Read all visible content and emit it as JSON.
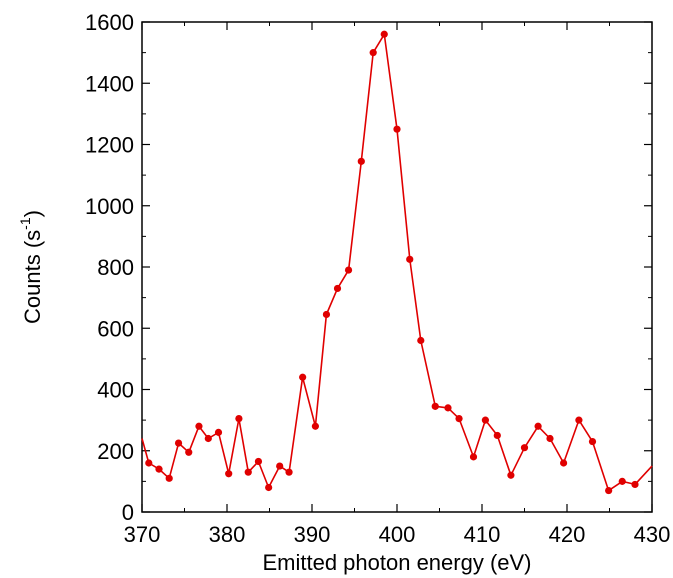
{
  "chart_data": {
    "type": "line",
    "title": "",
    "xlabel": "Emitted photon energy (eV)",
    "ylabel_main": "Counts (s",
    "ylabel_sup": "-1",
    "ylabel_close": ")",
    "xlim": [
      370,
      430
    ],
    "ylim": [
      0,
      1600
    ],
    "xticks": [
      370,
      380,
      390,
      400,
      410,
      420,
      430
    ],
    "yticks": [
      0,
      200,
      400,
      600,
      800,
      1000,
      1200,
      1400,
      1600
    ],
    "grid": false,
    "series": [
      {
        "color": "#e00000",
        "marker": "circle",
        "x": [
          370.0,
          370.8,
          372.0,
          373.2,
          374.3,
          375.5,
          376.7,
          377.8,
          379.0,
          380.2,
          381.4,
          382.5,
          383.7,
          384.9,
          386.2,
          387.3,
          388.9,
          390.4,
          391.7,
          393.0,
          394.3,
          395.8,
          397.2,
          398.5,
          400.0,
          401.5,
          402.8,
          404.5,
          406.0,
          407.3,
          409.0,
          410.4,
          411.8,
          413.4,
          415.0,
          416.6,
          418.0,
          419.6,
          421.4,
          423.0,
          424.9,
          426.5,
          428.0,
          430.0
        ],
        "y": [
          240,
          160,
          140,
          110,
          225,
          195,
          280,
          240,
          260,
          125,
          305,
          130,
          165,
          80,
          150,
          130,
          440,
          280,
          645,
          730,
          790,
          1145,
          1500,
          1560,
          1250,
          825,
          560,
          345,
          340,
          305,
          180,
          300,
          250,
          120,
          210,
          280,
          240,
          160,
          300,
          230,
          70,
          100,
          90,
          150
        ]
      }
    ]
  }
}
